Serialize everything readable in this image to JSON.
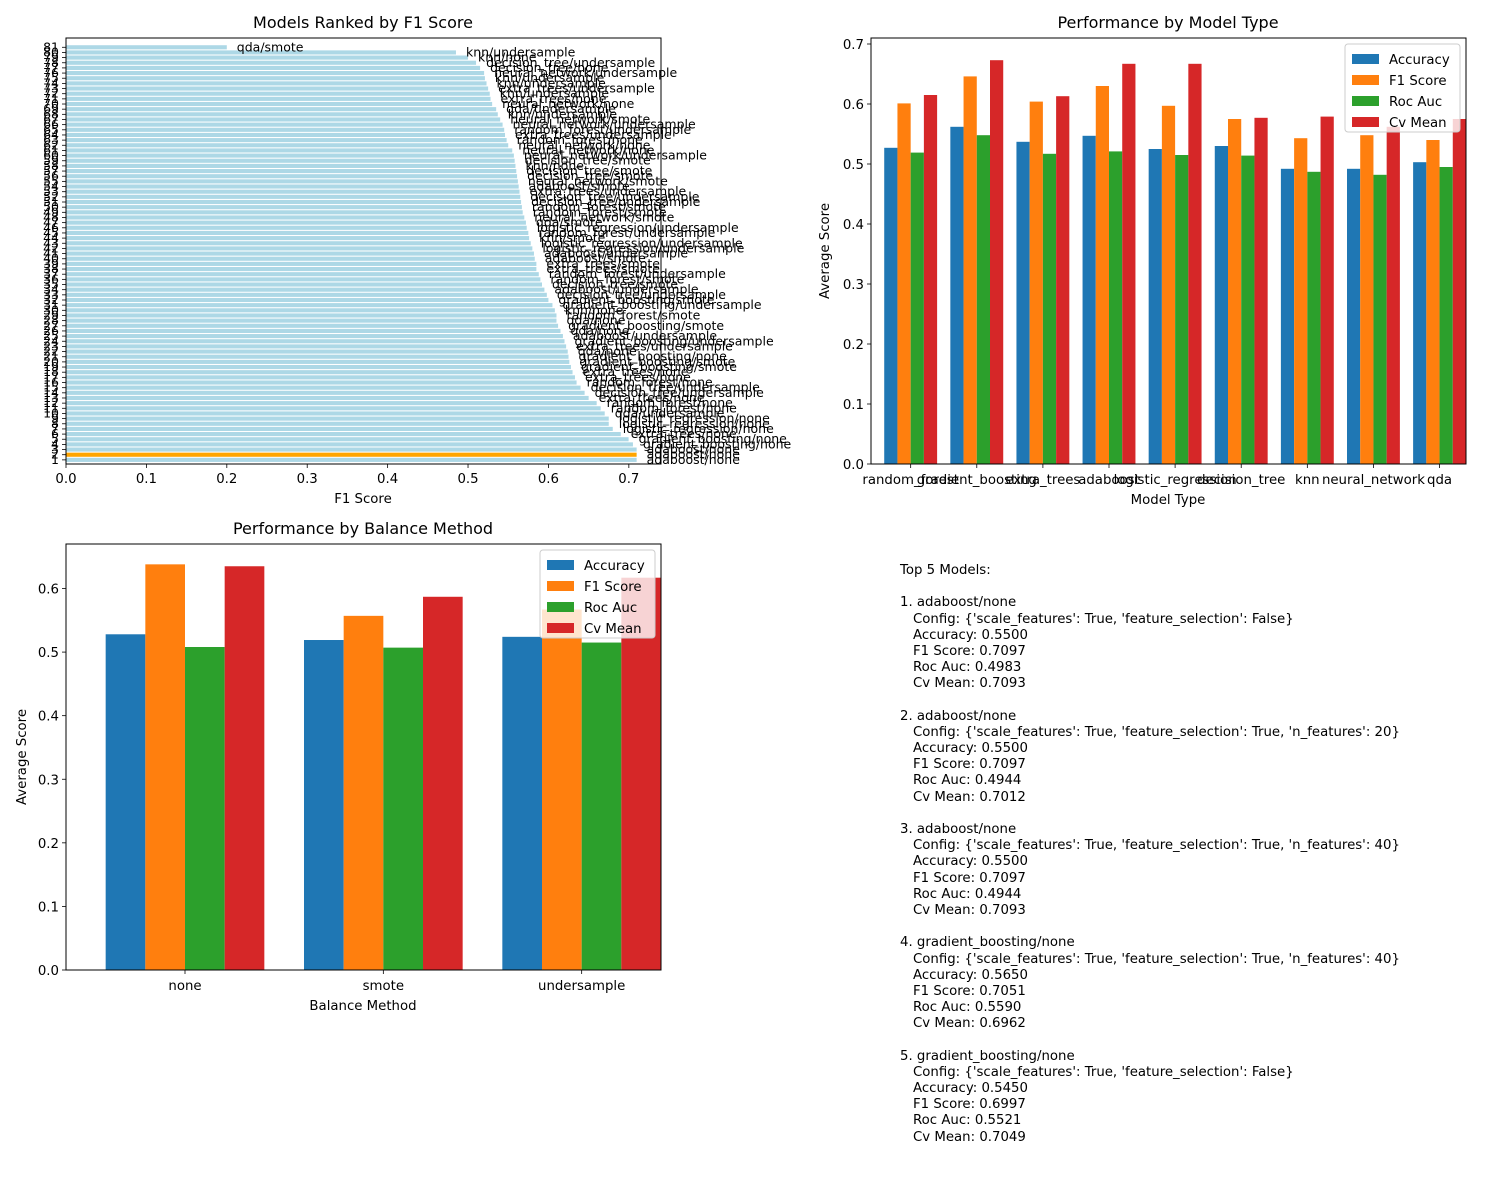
{
  "chart_data": [
    {
      "type": "bar",
      "orientation": "horizontal",
      "title": "Models Ranked by F1 Score",
      "xlabel": "F1 Score",
      "ylabel": "",
      "xlim": [
        0.0,
        0.74
      ],
      "xticks": [
        "0.0",
        "0.1",
        "0.2",
        "0.3",
        "0.4",
        "0.5",
        "0.6",
        "0.7"
      ],
      "bar_color": "#add8e6",
      "highlight_color": "#ffa500",
      "highlight_rank": 2,
      "ranks": [
        1,
        2,
        3,
        4,
        5,
        6,
        7,
        8,
        9,
        10,
        11,
        12,
        13,
        14,
        15,
        16,
        17,
        18,
        19,
        20,
        21,
        22,
        23,
        24,
        25,
        26,
        27,
        28,
        29,
        30,
        31,
        32,
        33,
        34,
        35,
        36,
        37,
        38,
        39,
        40,
        41,
        42,
        43,
        44,
        45,
        46,
        47,
        48,
        49,
        50,
        51,
        52,
        53,
        54,
        55,
        56,
        57,
        58,
        59,
        60,
        61,
        62,
        63,
        64,
        65,
        66,
        67,
        68,
        69,
        70,
        71,
        72,
        73,
        74,
        75,
        76,
        77,
        78,
        79,
        80,
        81
      ],
      "values": [
        0.7097,
        0.7097,
        0.7097,
        0.7051,
        0.6997,
        0.69,
        0.68,
        0.675,
        0.675,
        0.67,
        0.665,
        0.66,
        0.65,
        0.645,
        0.64,
        0.635,
        0.633,
        0.63,
        0.628,
        0.626,
        0.625,
        0.624,
        0.622,
        0.62,
        0.618,
        0.615,
        0.612,
        0.61,
        0.61,
        0.608,
        0.605,
        0.6,
        0.598,
        0.595,
        0.592,
        0.59,
        0.588,
        0.585,
        0.585,
        0.583,
        0.582,
        0.58,
        0.578,
        0.576,
        0.575,
        0.573,
        0.572,
        0.57,
        0.568,
        0.567,
        0.566,
        0.565,
        0.564,
        0.563,
        0.562,
        0.561,
        0.56,
        0.559,
        0.558,
        0.557,
        0.555,
        0.55,
        0.548,
        0.546,
        0.545,
        0.543,
        0.54,
        0.537,
        0.535,
        0.53,
        0.528,
        0.527,
        0.525,
        0.523,
        0.521,
        0.52,
        0.515,
        0.51,
        0.5,
        0.485,
        0.2
      ],
      "labels": [
        "adaboost/none",
        "adaboost/none",
        "adaboost/none",
        "gradient_boosting/none",
        "gradient_boosting/none",
        "extra_trees/none",
        "logistic_regression/none",
        "logistic_regression/none",
        "logistic_regression/none",
        "qda/undersample",
        "random_forest/none",
        "random_forest/none",
        "extra_trees/none",
        "decision_tree/undersample",
        "decision_tree/undersample",
        "random_forest/none",
        "extra_trees/none",
        "extra_trees/none",
        "gradient_boosting/smote",
        "gradient_boosting/smote",
        "gradient_boosting/none",
        "qda/none",
        "extra_trees/undersample",
        "gradient_boosting/undersample",
        "adaboost/undersample",
        "qda/none",
        "gradient_boosting/smote",
        "qda/none",
        "random_forest/smote",
        "knn/none",
        "gradient_boosting/undersample",
        "gradient_boosting/smote",
        "decision_tree/undersample",
        "adaboost/undersample",
        "decision_tree/smote",
        "random_forest/smote",
        "random_forest/undersample",
        "extra_trees/smote",
        "extra_trees/smote",
        "adaboost/smote",
        "adaboost/undersample",
        "logistic_regression/undersample",
        "logistic_regression/undersample",
        "knn/smote",
        "random_forest/undersample",
        "logistic_regression/undersample",
        "qda/smote",
        "neural_network/smote",
        "random_forest/smote",
        "random_forest/smote",
        "decision_tree/undersample",
        "decision_tree/undersample",
        "extra_trees/undersample",
        "adaboost/smote",
        "neural_network/smote",
        "decision_tree/smote",
        "decision_tree/smote",
        "knn/none",
        "decision_tree/smote",
        "neural_network/undersample",
        "neural_network/none",
        "neural_network/none",
        "random_forest/none",
        "extra_trees/undersample",
        "random_forest/undersample",
        "neural_network/undersample",
        "neural_network/smote",
        "knn/undersample",
        "qda/undersample",
        "neural_network/none",
        "extra_trees/none",
        "knn/undersample",
        "extra_trees/undersample",
        "knn/undersample",
        "knn/undersample",
        "neural_network/undersample",
        "decision_tree/none",
        "decision_tree/undersample",
        "knn/none",
        "knn/undersample",
        "qda/smote"
      ]
    },
    {
      "type": "bar",
      "title": "Performance by Model Type",
      "xlabel": "Model Type",
      "ylabel": "Average Score",
      "ylim": [
        0.0,
        0.71
      ],
      "yticks": [
        "0.0",
        "0.1",
        "0.2",
        "0.3",
        "0.4",
        "0.5",
        "0.6",
        "0.7"
      ],
      "legend_position": "top-right",
      "categories": [
        "random_forest",
        "gradient_boosting",
        "extra_trees",
        "adaboost",
        "logistic_regression",
        "decision_tree",
        "knn",
        "neural_network",
        "qda"
      ],
      "series": [
        {
          "name": "Accuracy",
          "color": "#1f77b4",
          "values": [
            0.527,
            0.562,
            0.537,
            0.547,
            0.525,
            0.53,
            0.492,
            0.492,
            0.503
          ]
        },
        {
          "name": "F1 Score",
          "color": "#ff7f0e",
          "values": [
            0.601,
            0.646,
            0.604,
            0.63,
            0.597,
            0.575,
            0.543,
            0.548,
            0.54
          ]
        },
        {
          "name": "Roc Auc",
          "color": "#2ca02c",
          "values": [
            0.519,
            0.548,
            0.517,
            0.521,
            0.515,
            0.514,
            0.487,
            0.482,
            0.495
          ]
        },
        {
          "name": "Cv Mean",
          "color": "#d62728",
          "values": [
            0.615,
            0.673,
            0.613,
            0.667,
            0.667,
            0.577,
            0.579,
            0.562,
            0.575
          ]
        }
      ]
    },
    {
      "type": "bar",
      "title": "Performance by Balance Method",
      "xlabel": "Balance Method",
      "ylabel": "Average Score",
      "ylim": [
        0.0,
        0.67
      ],
      "yticks": [
        "0.0",
        "0.1",
        "0.2",
        "0.3",
        "0.4",
        "0.5",
        "0.6"
      ],
      "legend_position": "top-right",
      "categories": [
        "none",
        "smote",
        "undersample"
      ],
      "series": [
        {
          "name": "Accuracy",
          "color": "#1f77b4",
          "values": [
            0.528,
            0.519,
            0.524
          ]
        },
        {
          "name": "F1 Score",
          "color": "#ff7f0e",
          "values": [
            0.638,
            0.557,
            0.567
          ]
        },
        {
          "name": "Roc Auc",
          "color": "#2ca02c",
          "values": [
            0.508,
            0.507,
            0.515
          ]
        },
        {
          "name": "Cv Mean",
          "color": "#d62728",
          "values": [
            0.635,
            0.587,
            0.617
          ]
        }
      ]
    }
  ],
  "summary": {
    "heading": "Top 5 Models:",
    "models": [
      {
        "title": "1. adaboost/none",
        "lines": [
          "Config: {'scale_features': True, 'feature_selection': False}",
          "Accuracy: 0.5500",
          "F1 Score: 0.7097",
          "Roc Auc: 0.4983",
          "Cv Mean: 0.7093"
        ]
      },
      {
        "title": "2. adaboost/none",
        "lines": [
          "Config: {'scale_features': True, 'feature_selection': True, 'n_features': 20}",
          "Accuracy: 0.5500",
          "F1 Score: 0.7097",
          "Roc Auc: 0.4944",
          "Cv Mean: 0.7012"
        ]
      },
      {
        "title": "3. adaboost/none",
        "lines": [
          "Config: {'scale_features': True, 'feature_selection': True, 'n_features': 40}",
          "Accuracy: 0.5500",
          "F1 Score: 0.7097",
          "Roc Auc: 0.4944",
          "Cv Mean: 0.7093"
        ]
      },
      {
        "title": "4. gradient_boosting/none",
        "lines": [
          "Config: {'scale_features': True, 'feature_selection': True, 'n_features': 40}",
          "Accuracy: 0.5650",
          "F1 Score: 0.7051",
          "Roc Auc: 0.5590",
          "Cv Mean: 0.6962"
        ]
      },
      {
        "title": "5. gradient_boosting/none",
        "lines": [
          "Config: {'scale_features': True, 'feature_selection': False}",
          "Accuracy: 0.5450",
          "F1 Score: 0.6997",
          "Roc Auc: 0.5521",
          "Cv Mean: 0.7049"
        ]
      }
    ]
  }
}
